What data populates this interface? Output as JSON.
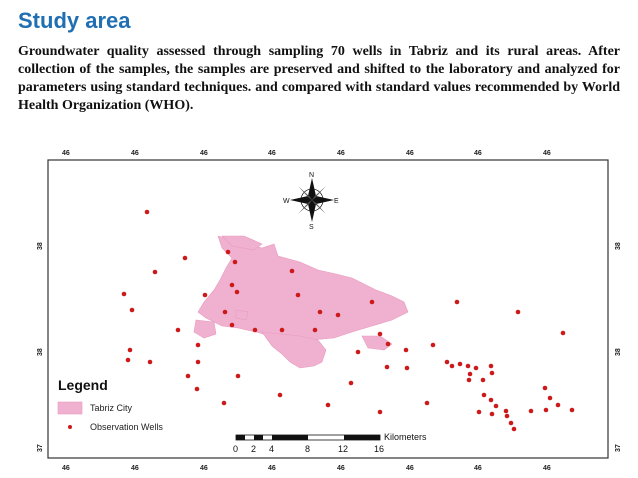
{
  "page": {
    "title": "Study area",
    "description": "Groundwater quality assessed through sampling 70 wells in Tabriz and its rural areas. After collection of the samples, the samples are preserved and shifted to the laboratory and analyzed for parameters using standard techniques. and compared with standard values recommended by World Health Organization (WHO)."
  },
  "map": {
    "colors": {
      "city_fill": "#f0b0cf",
      "well_dot": "#cc1a1a",
      "title_blue": "#1f6fb2"
    },
    "lon_ticks": [
      "46",
      "46",
      "46",
      "46",
      "46",
      "46",
      "46",
      "46"
    ],
    "lat_ticks": [
      "38",
      "38",
      "37"
    ],
    "compass": {
      "north": "N",
      "south": "S",
      "east": "E",
      "west": "W"
    },
    "legend": {
      "title": "Legend",
      "city_label": "Tabriz City",
      "wells_label": "Observation Wells"
    },
    "scale": {
      "unit": "Kilometers",
      "labels": [
        "0",
        "2",
        "4",
        "8",
        "12",
        "16"
      ]
    },
    "wells": [
      [
        147,
        72
      ],
      [
        185,
        118
      ],
      [
        155,
        132
      ],
      [
        124,
        154
      ],
      [
        205,
        155
      ],
      [
        132,
        170
      ],
      [
        130,
        210
      ],
      [
        128,
        220
      ],
      [
        150,
        222
      ],
      [
        178,
        190
      ],
      [
        198,
        205
      ],
      [
        188,
        236
      ],
      [
        238,
        236
      ],
      [
        224,
        263
      ],
      [
        197,
        249
      ],
      [
        228,
        112
      ],
      [
        235,
        122
      ],
      [
        232,
        145
      ],
      [
        237,
        152
      ],
      [
        225,
        172
      ],
      [
        232,
        185
      ],
      [
        255,
        190
      ],
      [
        298,
        155
      ],
      [
        320,
        172
      ],
      [
        292,
        131
      ],
      [
        282,
        190
      ],
      [
        315,
        190
      ],
      [
        338,
        175
      ],
      [
        372,
        162
      ],
      [
        380,
        194
      ],
      [
        358,
        212
      ],
      [
        388,
        204
      ],
      [
        406,
        210
      ],
      [
        387,
        227
      ],
      [
        351,
        243
      ],
      [
        433,
        205
      ],
      [
        447,
        222
      ],
      [
        452,
        226
      ],
      [
        460,
        224
      ],
      [
        468,
        226
      ],
      [
        470,
        234
      ],
      [
        476,
        228
      ],
      [
        469,
        240
      ],
      [
        483,
        240
      ],
      [
        491,
        226
      ],
      [
        492,
        233
      ],
      [
        484,
        255
      ],
      [
        491,
        260
      ],
      [
        496,
        266
      ],
      [
        506,
        271
      ],
      [
        507,
        276
      ],
      [
        511,
        283
      ],
      [
        514,
        289
      ],
      [
        479,
        272
      ],
      [
        492,
        274
      ],
      [
        531,
        271
      ],
      [
        545,
        248
      ],
      [
        550,
        258
      ],
      [
        546,
        270
      ],
      [
        558,
        265
      ],
      [
        572,
        270
      ],
      [
        563,
        193
      ],
      [
        518,
        172
      ],
      [
        457,
        162
      ],
      [
        407,
        228
      ],
      [
        280,
        255
      ],
      [
        328,
        265
      ],
      [
        380,
        272
      ],
      [
        427,
        263
      ],
      [
        198,
        222
      ]
    ]
  }
}
